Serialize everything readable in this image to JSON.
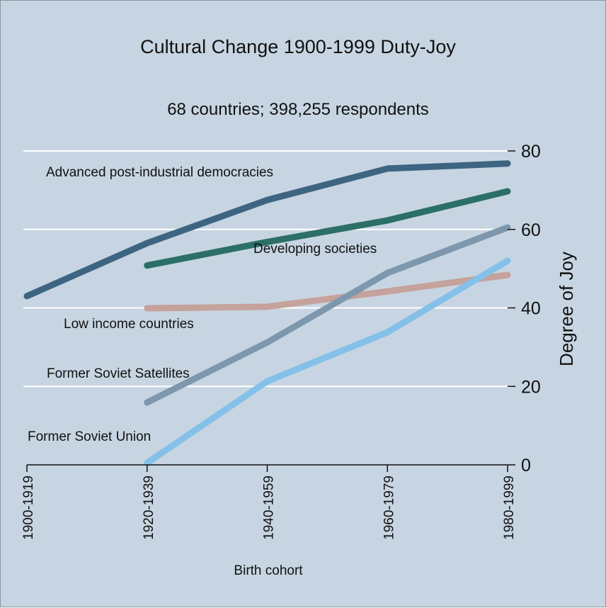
{
  "chart_data": {
    "type": "line",
    "title": "Cultural Change 1900-1999 Duty-Joy",
    "subtitle": "68 countries; 398,255 respondents",
    "xlabel": "Birth cohort",
    "ylabel": "Degree of Joy",
    "categories": [
      "1900-1919",
      "1920-1939",
      "1940-1959",
      "1960-1979",
      "1980-1999"
    ],
    "ylim": [
      0,
      80
    ],
    "yticks": [
      0,
      20,
      40,
      60,
      80
    ],
    "grid": true,
    "series": [
      {
        "name": "Advanced post-industrial democracies",
        "color": "#3d6582",
        "values": [
          43,
          56.5,
          67.5,
          75.5,
          76.8
        ]
      },
      {
        "name": "Developing societies",
        "color": "#2b6f67",
        "values": [
          null,
          50.8,
          56.8,
          62.3,
          69.7
        ]
      },
      {
        "name": "Low income countries",
        "color": "#c5a29b",
        "values": [
          null,
          39.9,
          40.3,
          44.2,
          48.4
        ]
      },
      {
        "name": "Former Soviet Satellites",
        "color": "#7d97ad",
        "values": [
          null,
          15.9,
          31.2,
          48.9,
          60.5
        ]
      },
      {
        "name": "Former Soviet Union",
        "color": "#84c0e9",
        "values": [
          null,
          0.5,
          21.3,
          33.8,
          52
        ]
      }
    ]
  }
}
